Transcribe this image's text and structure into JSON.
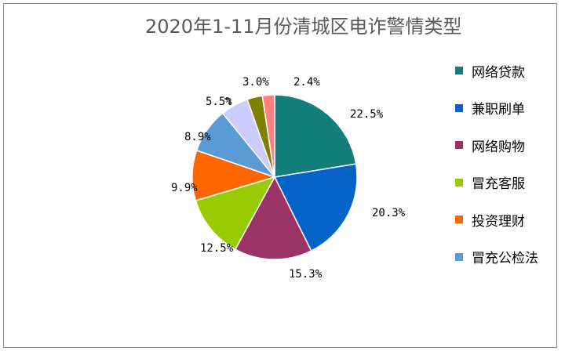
{
  "chart_data": {
    "type": "pie",
    "title": "2020年1-11月份清城区电诈警情类型",
    "slices": [
      {
        "name": "网络贷款",
        "label": "22.5%",
        "value": 22.5,
        "color": "#12807A"
      },
      {
        "name": "兼职刷单",
        "label": "20.3%",
        "value": 20.3,
        "color": "#0563C8"
      },
      {
        "name": "网络购物",
        "label": "15.3%",
        "value": 15.3,
        "color": "#9C3367"
      },
      {
        "name": "冒充客服",
        "label": "12.5%",
        "value": 12.5,
        "color": "#99CC00"
      },
      {
        "name": "投资理财",
        "label": "9.9%",
        "value": 9.9,
        "color": "#FF6600"
      },
      {
        "name": "冒充公检法",
        "label": "8.9%",
        "value": 8.9,
        "color": "#5B9BD5"
      },
      {
        "name": "",
        "label": "5.5%",
        "value": 5.5,
        "color": "#CCCCFF"
      },
      {
        "name": "",
        "label": "3.0%",
        "value": 3.0,
        "color": "#808000"
      },
      {
        "name": "",
        "label": "2.4%",
        "value": 2.4,
        "color": "#FF8080"
      }
    ],
    "legend": [
      {
        "label": "网络贷款",
        "color": "#12807A"
      },
      {
        "label": "兼职刷单",
        "color": "#0563C8"
      },
      {
        "label": "网络购物",
        "color": "#9C3367"
      },
      {
        "label": "冒充客服",
        "color": "#99CC00"
      },
      {
        "label": "投资理财",
        "color": "#FF6600"
      },
      {
        "label": "冒充公检法",
        "color": "#5B9BD5"
      }
    ],
    "legend_position": "right"
  }
}
